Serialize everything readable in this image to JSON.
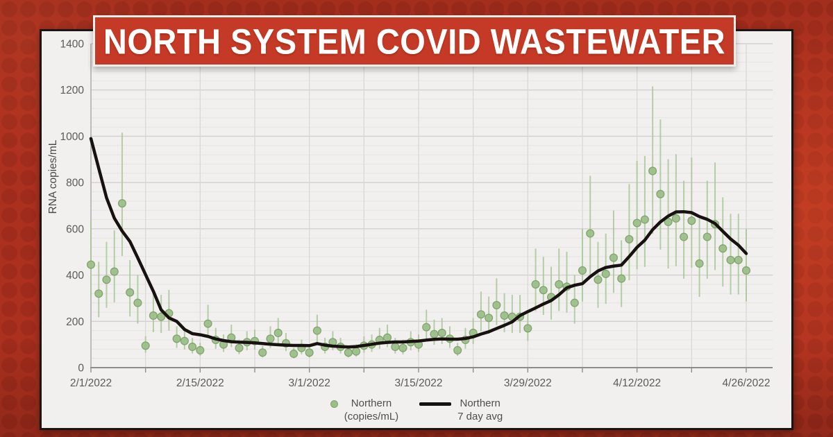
{
  "banner": {
    "title": "NORTH SYSTEM COVID WASTEWATER"
  },
  "legend": {
    "items": [
      {
        "marker": "dot",
        "line1": "Northern",
        "line2": "(copies/mL)"
      },
      {
        "marker": "line",
        "line1": "Northern",
        "line2": "7 day avg"
      }
    ]
  },
  "colors": {
    "background_red": "#ac301e",
    "banner_red": "#c53a26",
    "panel_bg": "#f2f0ee",
    "scatter_green_fill": "#9dbf8b",
    "scatter_green_edge": "#7ca167",
    "error_bar_green": "#a9c79a",
    "avg_line_black": "#17120f",
    "axis_text_gray": "#5a5a5a",
    "gridline_minor": "#e6e4e1",
    "gridline_major": "#d2d0cd"
  },
  "chart_data": {
    "type": "scatter",
    "title": "NORTH SYSTEM COVID WASTEWATER",
    "xlabel": "",
    "ylabel": "RNA copies/mL",
    "ylim": [
      0,
      1400
    ],
    "y_ticks": [
      0,
      200,
      400,
      600,
      800,
      1000,
      1200,
      1400
    ],
    "start_date": "2/1/2022",
    "end_date": "4/26/2022",
    "x_tick_labels": [
      "2/1/2022",
      "2/15/2022",
      "3/1/2022",
      "3/15/2022",
      "3/29/2022",
      "4/12/2022",
      "4/26/2022"
    ],
    "x_tick_day_positions": [
      0,
      14,
      28,
      42,
      56,
      70,
      84
    ],
    "grid": {
      "minor_y_step": 40,
      "major_y_step": 200,
      "vertical_step_days": 7
    },
    "legend_position": "bottom",
    "error_bars": {
      "lower_ratio": 0.68,
      "upper_ratio": 1.43
    },
    "series": [
      {
        "name": "Northern (copies/mL)",
        "type": "scatter",
        "values": [
          445,
          320,
          380,
          415,
          710,
          325,
          280,
          95,
          225,
          220,
          235,
          125,
          115,
          90,
          75,
          190,
          120,
          100,
          130,
          85,
          110,
          115,
          65,
          125,
          150,
          105,
          60,
          85,
          65,
          160,
          90,
          110,
          90,
          65,
          70,
          95,
          100,
          120,
          130,
          90,
          85,
          110,
          100,
          175,
          145,
          150,
          125,
          75,
          120,
          150,
          230,
          215,
          270,
          225,
          220,
          220,
          170,
          360,
          335,
          305,
          360,
          350,
          280,
          420,
          580,
          380,
          405,
          475,
          385,
          555,
          625,
          640,
          850,
          750,
          630,
          645,
          565,
          635,
          450,
          565,
          620,
          515,
          465,
          465,
          420
        ]
      },
      {
        "name": "Northern 7 day avg",
        "type": "line",
        "values": [
          990,
          862,
          734,
          646,
          590,
          545,
          475,
          402,
          330,
          250,
          215,
          200,
          165,
          147,
          142,
          135,
          124,
          117,
          112,
          110,
          109,
          107,
          104,
          101,
          99,
          97,
          96,
          96,
          95,
          104,
          97,
          93,
          91,
          89,
          91,
          96,
          101,
          106,
          109,
          111,
          111,
          113,
          115,
          119,
          122,
          124,
          123,
          123,
          126,
          133,
          145,
          155,
          169,
          183,
          198,
          225,
          242,
          258,
          275,
          290,
          315,
          345,
          356,
          363,
          393,
          418,
          433,
          439,
          443,
          480,
          520,
          551,
          596,
          630,
          655,
          673,
          674,
          670,
          653,
          641,
          623,
          589,
          556,
          529,
          493
        ]
      }
    ]
  }
}
